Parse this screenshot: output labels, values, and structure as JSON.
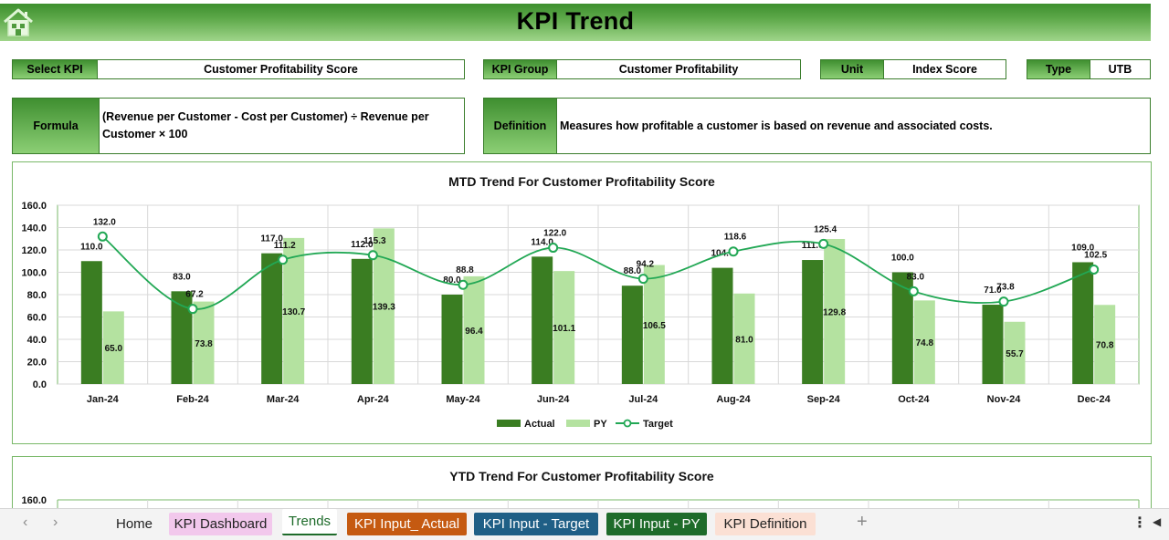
{
  "banner": {
    "title": "KPI Trend",
    "icon": "home-icon"
  },
  "fields": {
    "select_kpi": {
      "label": "Select KPI",
      "value": "Customer Profitability Score"
    },
    "kpi_group": {
      "label": "KPI Group",
      "value": "Customer Profitability"
    },
    "unit": {
      "label": "Unit",
      "value": "Index Score"
    },
    "type": {
      "label": "Type",
      "value": "UTB"
    },
    "formula": {
      "label": "Formula",
      "line1": "(Revenue per Customer - Cost per Customer) ÷ Revenue per",
      "line2": "Customer × 100"
    },
    "definition": {
      "label": "Definition",
      "value": "Measures how profitable a customer is based on revenue and associated costs."
    }
  },
  "chart_data": [
    {
      "type": "bar",
      "title": "MTD Trend For Customer Profitability Score",
      "categories": [
        "Jan-24",
        "Feb-24",
        "Mar-24",
        "Apr-24",
        "May-24",
        "Jun-24",
        "Jul-24",
        "Aug-24",
        "Sep-24",
        "Oct-24",
        "Nov-24",
        "Dec-24"
      ],
      "ylim": [
        0,
        160
      ],
      "yticks": [
        "0.0",
        "20.0",
        "40.0",
        "60.0",
        "80.0",
        "100.0",
        "120.0",
        "140.0",
        "160.0"
      ],
      "grid": true,
      "legend": "bottom",
      "series": [
        {
          "name": "Actual",
          "kind": "bar",
          "color": "#3a7d22",
          "values": [
            110.0,
            83.0,
            117.0,
            112.0,
            80.0,
            114.0,
            88.0,
            104.0,
            111.0,
            100.0,
            71.0,
            109.0
          ],
          "labels": [
            "110.0",
            "83.0",
            "117.0",
            "112.0",
            "80.0",
            "114.0",
            "88.0",
            "104.0",
            "111.0",
            "100.0",
            "71.0",
            "109.0"
          ]
        },
        {
          "name": "PY",
          "kind": "bar",
          "color": "#b4e2a0",
          "values": [
            65.0,
            73.8,
            130.7,
            139.3,
            96.4,
            101.1,
            106.5,
            81.0,
            129.8,
            74.8,
            55.7,
            70.8
          ],
          "labels": [
            "65.0",
            "73.8",
            "130.7",
            "139.3",
            "96.4",
            "101.1",
            "106.5",
            "81.0",
            "129.8",
            "74.8",
            "55.7",
            "70.8"
          ]
        },
        {
          "name": "Target",
          "kind": "line",
          "color": "#22a855",
          "values": [
            132.0,
            67.2,
            111.2,
            115.3,
            88.8,
            122.0,
            94.2,
            118.6,
            125.4,
            83.0,
            73.8,
            102.5
          ],
          "labels": [
            "132.0",
            "67.2",
            "111.2",
            "115.3",
            "88.8",
            "122.0",
            "94.2",
            "118.6",
            "125.4",
            "83.0",
            "73.8",
            "102.5"
          ]
        }
      ]
    },
    {
      "type": "bar",
      "title": "YTD Trend For Customer Profitability Score",
      "ylim": [
        0,
        160
      ],
      "yticks": [
        "160.0"
      ],
      "grid": true
    }
  ],
  "tabs": {
    "prev": "‹",
    "next": "›",
    "items": [
      {
        "label": "Home",
        "bg": "#f3f3f3",
        "fg": "#222"
      },
      {
        "label": "KPI Dashboard",
        "bg": "#f2c8ec",
        "fg": "#222"
      },
      {
        "label": "Trends",
        "bg": "#ffffff",
        "fg": "#1e6b2a"
      },
      {
        "label": "KPI Input_ Actual",
        "bg": "#c55a11",
        "fg": "#ffffff"
      },
      {
        "label": "KPI Input - Target",
        "bg": "#1f5f86",
        "fg": "#ffffff"
      },
      {
        "label": "KPI Input - PY",
        "bg": "#1e6b2a",
        "fg": "#ffffff"
      },
      {
        "label": "KPI Definition",
        "bg": "#fbe0d4",
        "fg": "#222"
      }
    ],
    "add": "+",
    "menu": "⋮",
    "scroll": "◀"
  }
}
